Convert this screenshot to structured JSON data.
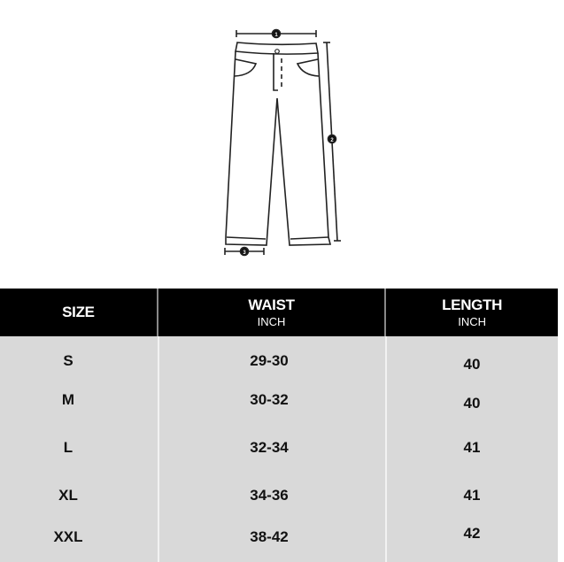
{
  "diagram": {
    "markers": [
      "1",
      "2",
      "3"
    ]
  },
  "table": {
    "headers": [
      {
        "title": "SIZE",
        "unit": ""
      },
      {
        "title": "WAIST",
        "unit": "INCH"
      },
      {
        "title": "LENGTH",
        "unit": "INCH"
      }
    ],
    "rows": [
      {
        "size": "S",
        "waist": "29-30",
        "length": "40"
      },
      {
        "size": "M",
        "waist": "30-32",
        "length": "40"
      },
      {
        "size": "L",
        "waist": "32-34",
        "length": "41"
      },
      {
        "size": "XL",
        "waist": "34-36",
        "length": "41"
      },
      {
        "size": "XXL",
        "waist": "38-42",
        "length": "42"
      }
    ],
    "colors": {
      "header_bg": "#000000",
      "body_bg": "#d9d9d9"
    }
  }
}
